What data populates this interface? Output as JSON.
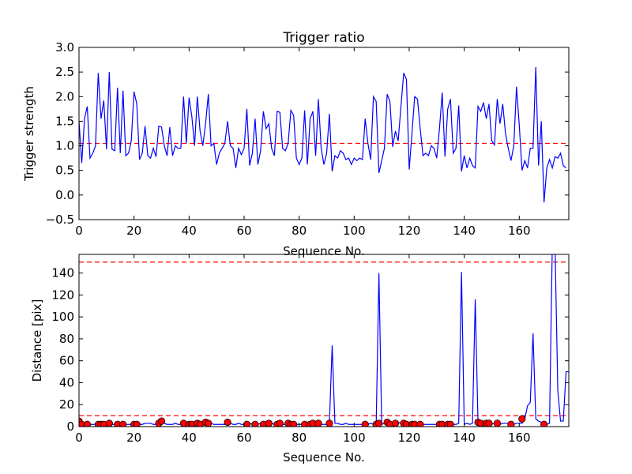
{
  "chart_data": [
    {
      "type": "line",
      "title": "Trigger ratio",
      "xlabel": "Sequence No.",
      "ylabel": "Trigger strength",
      "xlim": [
        0,
        178
      ],
      "ylim": [
        -0.5,
        3.0
      ],
      "xticks": [
        0,
        20,
        40,
        60,
        80,
        100,
        120,
        140,
        160
      ],
      "xtick_labels": [
        "0",
        "20",
        "40",
        "60",
        "80",
        "100",
        "120",
        "140",
        "160"
      ],
      "yticks": [
        -0.5,
        0.0,
        0.5,
        1.0,
        1.5,
        2.0,
        2.5,
        3.0
      ],
      "ytick_labels": [
        "−0.5",
        "0.0",
        "0.5",
        "1.0",
        "1.5",
        "2.0",
        "2.5",
        "3.0"
      ],
      "threshold": 1.05,
      "colors": {
        "line": "#0000ff",
        "threshold": "#ff0000"
      },
      "series": [
        {
          "y": [
            1.5,
            0.65,
            1.55,
            1.8,
            0.75,
            0.85,
            1.0,
            2.48,
            1.55,
            1.92,
            0.93,
            2.5,
            0.93,
            0.9,
            2.18,
            0.85,
            2.12,
            0.8,
            0.85,
            1.1,
            2.1,
            1.85,
            0.72,
            0.85,
            1.4,
            0.8,
            0.75,
            0.95,
            0.78,
            1.4,
            1.38,
            1.0,
            0.8,
            1.38,
            0.8,
            1.0,
            0.95,
            0.95,
            2.0,
            1.05,
            1.98,
            1.6,
            1.0,
            2.0,
            1.3,
            1.0,
            1.45,
            2.05,
            1.0,
            1.05,
            0.62,
            0.85,
            0.95,
            1.05,
            1.5,
            1.0,
            0.95,
            0.55,
            0.95,
            0.82,
            0.95,
            1.75,
            0.6,
            0.85,
            1.55,
            0.62,
            0.9,
            1.7,
            1.35,
            1.45,
            0.95,
            0.8,
            1.7,
            1.68,
            0.95,
            0.9,
            1.05,
            1.72,
            1.62,
            0.75,
            0.62,
            0.75,
            1.72,
            0.62,
            1.55,
            1.7,
            0.8,
            1.95,
            0.95,
            0.62,
            0.85,
            1.65,
            0.48,
            0.8,
            0.75,
            0.9,
            0.85,
            0.72,
            0.75,
            0.62,
            0.75,
            0.7,
            0.75,
            0.72,
            1.55,
            1.05,
            0.72,
            2.0,
            1.9,
            0.45,
            0.7,
            0.95,
            2.05,
            1.9,
            0.98,
            1.3,
            1.1,
            1.8,
            2.48,
            2.35,
            0.52,
            1.25,
            2.0,
            1.95,
            1.35,
            0.8,
            0.85,
            0.8,
            1.0,
            0.95,
            0.75,
            1.35,
            2.08,
            0.78,
            1.75,
            1.95,
            0.85,
            0.95,
            1.82,
            0.48,
            0.8,
            0.55,
            0.75,
            0.6,
            0.55,
            1.8,
            1.7,
            1.88,
            1.55,
            1.85,
            1.1,
            1.02,
            1.95,
            1.45,
            1.85,
            1.25,
            0.95,
            0.7,
            1.0,
            2.2,
            1.42,
            0.5,
            0.7,
            0.55,
            0.95,
            0.95,
            2.6,
            0.6,
            1.5,
            -0.15,
            0.55,
            0.72,
            0.55,
            0.78,
            0.75,
            0.85,
            0.6,
            0.55
          ]
        }
      ]
    },
    {
      "type": "line",
      "title": "",
      "xlabel": "Sequence No.",
      "ylabel": "Distance [pix]",
      "xlim": [
        0,
        178
      ],
      "ylim": [
        0,
        157
      ],
      "xticks": [
        0,
        20,
        40,
        60,
        80,
        100,
        120,
        140,
        160
      ],
      "xtick_labels": [
        "0",
        "20",
        "40",
        "60",
        "80",
        "100",
        "120",
        "140",
        "160"
      ],
      "yticks": [
        0,
        20,
        40,
        60,
        80,
        100,
        120,
        140
      ],
      "ytick_labels": [
        "0",
        "20",
        "40",
        "60",
        "80",
        "100",
        "120",
        "140"
      ],
      "thresholds": [
        10,
        150
      ],
      "colors": {
        "line": "#0000ff",
        "threshold": "#ff0000",
        "markers": "#ff0000"
      },
      "series": [
        {
          "x": [
            0,
            1,
            2,
            3,
            4,
            5,
            6,
            7,
            8,
            9,
            10,
            11,
            12,
            13,
            14,
            15,
            16,
            17,
            18,
            19,
            20,
            21,
            22,
            23,
            24,
            25,
            26,
            27,
            28,
            29,
            30,
            31,
            32,
            33,
            34,
            35,
            36,
            37,
            38,
            39,
            40,
            41,
            42,
            43,
            44,
            45,
            46,
            47,
            48,
            49,
            50,
            51,
            52,
            53,
            54,
            55,
            56,
            57,
            58,
            59,
            60,
            61,
            62,
            63,
            64,
            65,
            66,
            67,
            68,
            69,
            70,
            71,
            72,
            73,
            74,
            75,
            76,
            77,
            78,
            79,
            80,
            81,
            82,
            83,
            84,
            85,
            86,
            87,
            88,
            89,
            90,
            91,
            92,
            93,
            94,
            95,
            96,
            97,
            98,
            99,
            100,
            101,
            102,
            103,
            104,
            105,
            106,
            107,
            108,
            109,
            110,
            111,
            112,
            113,
            114,
            115,
            116,
            117,
            118,
            119,
            120,
            121,
            122,
            123,
            124,
            125,
            126,
            127,
            128,
            129,
            130,
            131,
            132,
            133,
            134,
            135,
            136,
            137,
            138,
            139,
            140,
            141,
            142,
            143,
            144,
            145,
            146,
            147,
            148,
            149,
            150,
            151,
            152,
            153,
            154,
            155,
            156,
            157,
            158,
            159,
            160,
            161,
            162,
            163,
            164,
            165,
            166,
            167,
            168,
            169,
            170,
            171,
            172,
            173,
            174,
            175,
            176,
            177,
            178
          ],
          "y": [
            5,
            2,
            2,
            2,
            2,
            2,
            2,
            2,
            3,
            2,
            2,
            3,
            2,
            2,
            2,
            2,
            3,
            2,
            2,
            2,
            2,
            2,
            2,
            2,
            3,
            3,
            3,
            2,
            2,
            3,
            5,
            3,
            2,
            2,
            2,
            3,
            2,
            2,
            3,
            3,
            2,
            2,
            3,
            2,
            3,
            2,
            3,
            4,
            3,
            2,
            2,
            2,
            2,
            2,
            4,
            3,
            2,
            2,
            3,
            2,
            2,
            2,
            3,
            2,
            2,
            2,
            3,
            2,
            2,
            2,
            3,
            2,
            3,
            2,
            2,
            2,
            3,
            3,
            2,
            2,
            2,
            2,
            2,
            2,
            3,
            3,
            2,
            3,
            2,
            2,
            2,
            3,
            74,
            3,
            3,
            2,
            2,
            3,
            2,
            2,
            2,
            2,
            2,
            2,
            2,
            2,
            3,
            2,
            2,
            140,
            2,
            3,
            4,
            2,
            3,
            3,
            4,
            3,
            3,
            2,
            2,
            2,
            3,
            2,
            2,
            2,
            2,
            2,
            2,
            2,
            2,
            2,
            2,
            2,
            2,
            2,
            2,
            2,
            3,
            141,
            2,
            3,
            2,
            3,
            116,
            4,
            3,
            3,
            2,
            3,
            2,
            3,
            2,
            2,
            3,
            3,
            3,
            2,
            2,
            3,
            3,
            3,
            7,
            19,
            22,
            85,
            7,
            5,
            4,
            3,
            2,
            3,
            165,
            165,
            33,
            5,
            5,
            50,
            50
          ],
          "name": ""
        },
        {
          "x": [
            0,
            1,
            3,
            7,
            8,
            9,
            11,
            14,
            16,
            20,
            21,
            29,
            30,
            38,
            40,
            41,
            43,
            44,
            46,
            47,
            54,
            61,
            64,
            67,
            69,
            72,
            73,
            76,
            77,
            78,
            82,
            84,
            85,
            87,
            91,
            104,
            108,
            109,
            112,
            113,
            115,
            118,
            119,
            121,
            122,
            124,
            131,
            132,
            134,
            135,
            145,
            146,
            148,
            149,
            152,
            157,
            161,
            169
          ],
          "y": [
            5,
            2,
            2,
            2,
            2,
            2,
            3,
            2,
            2,
            2,
            2,
            3,
            5,
            3,
            2,
            2,
            3,
            2,
            4,
            3,
            4,
            2,
            2,
            2,
            3,
            2,
            3,
            3,
            2,
            2,
            2,
            2,
            3,
            3,
            3,
            2,
            2,
            3,
            4,
            2,
            3,
            3,
            2,
            2,
            2,
            2,
            2,
            2,
            2,
            2,
            4,
            3,
            3,
            3,
            3,
            2,
            7,
            2
          ],
          "name": ""
        }
      ]
    }
  ]
}
